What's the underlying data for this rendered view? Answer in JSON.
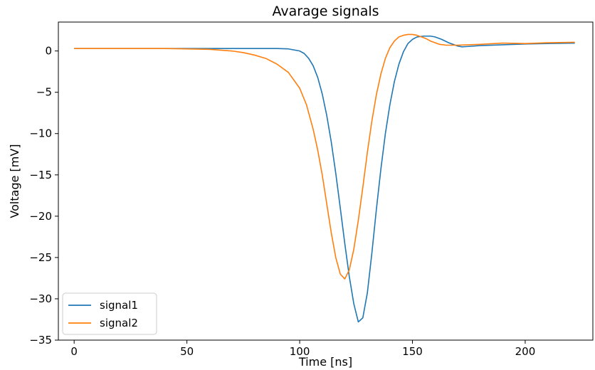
{
  "chart_data": {
    "type": "line",
    "title": "Avarage signals",
    "xlabel": "Time [ns]",
    "ylabel": "Voltage [mV]",
    "xlim": [
      -7,
      230
    ],
    "ylim": [
      -35,
      3.5
    ],
    "xticks": [
      0,
      50,
      100,
      150,
      200
    ],
    "yticks": [
      0,
      -5,
      -10,
      -15,
      -20,
      -25,
      -30,
      -35
    ],
    "xtick_labels": [
      "0",
      "50",
      "100",
      "150",
      "200"
    ],
    "ytick_labels": [
      "0",
      "−5",
      "−10",
      "−15",
      "−20",
      "−25",
      "−30",
      "−35"
    ],
    "grid": false,
    "legend_position": "lower-left",
    "series": [
      {
        "name": "signal1",
        "color": "#1f77b4",
        "x": [
          0,
          20,
          40,
          60,
          80,
          90,
          95,
          100,
          102,
          104,
          106,
          108,
          110,
          112,
          114,
          116,
          118,
          120,
          122,
          124,
          126,
          128,
          130,
          132,
          134,
          136,
          138,
          140,
          142,
          144,
          146,
          148,
          150,
          152,
          155,
          158,
          160,
          163,
          166,
          170,
          172,
          175,
          180,
          190,
          200,
          210,
          222
        ],
        "y": [
          0.3,
          0.3,
          0.3,
          0.3,
          0.3,
          0.3,
          0.25,
          0.0,
          -0.3,
          -0.9,
          -1.8,
          -3.2,
          -5.2,
          -7.8,
          -11.0,
          -14.8,
          -19.0,
          -23.3,
          -27.3,
          -30.6,
          -32.8,
          -32.3,
          -29.3,
          -24.5,
          -19.2,
          -14.3,
          -10.0,
          -6.5,
          -3.7,
          -1.6,
          -0.1,
          0.9,
          1.4,
          1.7,
          1.8,
          1.8,
          1.7,
          1.4,
          1.0,
          0.6,
          0.5,
          0.55,
          0.65,
          0.75,
          0.85,
          0.9,
          0.95
        ]
      },
      {
        "name": "signal2",
        "color": "#ff7f0e",
        "x": [
          0,
          20,
          40,
          60,
          70,
          75,
          80,
          85,
          90,
          95,
          100,
          103,
          106,
          108,
          110,
          112,
          114,
          116,
          118,
          120,
          122,
          124,
          126,
          128,
          130,
          132,
          134,
          136,
          138,
          140,
          142,
          144,
          146,
          148,
          150,
          152,
          154,
          156,
          158,
          160,
          162,
          165,
          170,
          175,
          180,
          190,
          200,
          210,
          222
        ],
        "y": [
          0.3,
          0.3,
          0.3,
          0.2,
          0.0,
          -0.2,
          -0.5,
          -0.9,
          -1.6,
          -2.6,
          -4.5,
          -6.5,
          -9.5,
          -12.0,
          -15.0,
          -18.5,
          -22.0,
          -25.0,
          -27.0,
          -27.6,
          -26.5,
          -24.0,
          -20.5,
          -16.5,
          -12.3,
          -8.5,
          -5.3,
          -2.8,
          -0.9,
          0.4,
          1.2,
          1.7,
          1.9,
          2.0,
          2.0,
          1.9,
          1.7,
          1.5,
          1.2,
          1.0,
          0.8,
          0.7,
          0.7,
          0.75,
          0.8,
          0.95,
          0.9,
          1.0,
          1.05
        ]
      }
    ]
  }
}
